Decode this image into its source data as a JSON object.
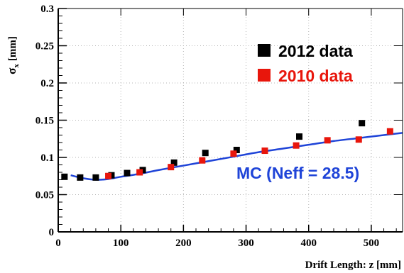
{
  "chart_data": {
    "type": "scatter",
    "xlabel": "Drift Length: z [mm]",
    "ylabel_main": "σ",
    "ylabel_sub": "x",
    "ylabel_unit": "[mm]",
    "xlim": [
      0,
      550
    ],
    "ylim": [
      0,
      0.3
    ],
    "xticks": [
      0,
      100,
      200,
      300,
      400,
      500
    ],
    "xtick_labels": [
      "0",
      "100",
      "200",
      "300",
      "400",
      "500"
    ],
    "yticks": [
      0,
      0.05,
      0.1,
      0.15,
      0.2,
      0.25,
      0.3
    ],
    "ytick_labels": [
      "0",
      "0.05",
      "0.1",
      "0.15",
      "0.2",
      "0.25",
      "0.3"
    ],
    "grid": true,
    "legend_position": "top-right",
    "series": [
      {
        "name": "2012 data",
        "color": "#000000",
        "marker": "square",
        "x": [
          10,
          35,
          60,
          85,
          110,
          135,
          185,
          235,
          285,
          385,
          485
        ],
        "y": [
          0.074,
          0.073,
          0.073,
          0.076,
          0.079,
          0.083,
          0.093,
          0.106,
          0.11,
          0.128,
          0.146
        ]
      },
      {
        "name": "2010 data",
        "color": "#e8160c",
        "marker": "square",
        "x": [
          80,
          130,
          180,
          230,
          280,
          330,
          380,
          430,
          480,
          530
        ],
        "y": [
          0.075,
          0.08,
          0.087,
          0.096,
          0.105,
          0.109,
          0.116,
          0.123,
          0.124,
          0.135
        ]
      },
      {
        "name": "MC (Neff = 28.5)",
        "color": "#1f44d8",
        "type": "line",
        "x": [
          20,
          40,
          60,
          80,
          100,
          130,
          160,
          200,
          240,
          280,
          320,
          360,
          400,
          440,
          480,
          520,
          550
        ],
        "y": [
          0.076,
          0.072,
          0.07,
          0.071,
          0.074,
          0.078,
          0.083,
          0.089,
          0.095,
          0.101,
          0.107,
          0.112,
          0.117,
          0.122,
          0.126,
          0.13,
          0.133
        ]
      }
    ],
    "annotation": "MC (Neff = 28.5)"
  }
}
